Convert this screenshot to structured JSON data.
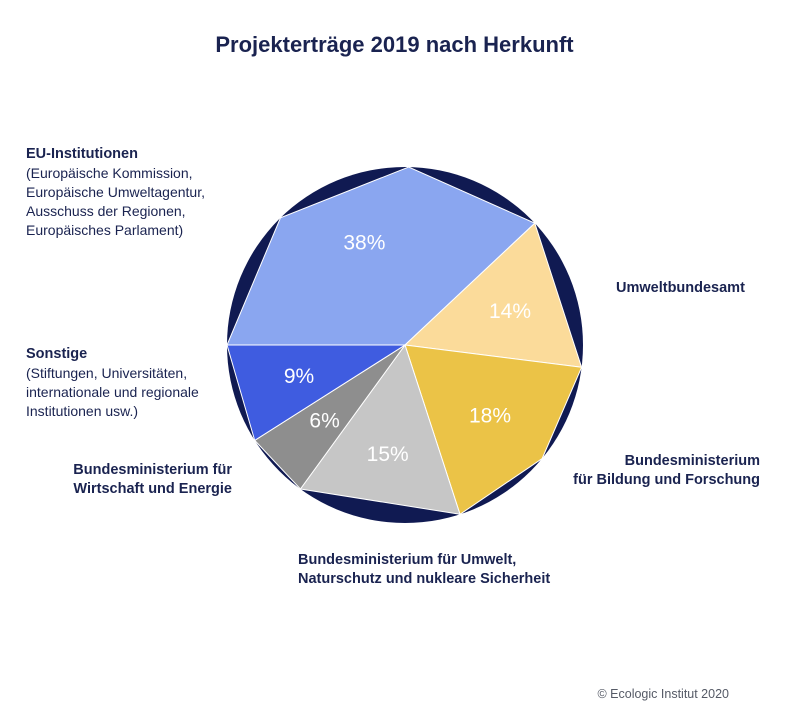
{
  "chart_data": {
    "type": "pie",
    "title": "Projekterträge 2019 nach Herkunft",
    "slices": [
      {
        "label": "EU-Institutionen",
        "detail": [
          "(Europäische Kommission,",
          "Europäische Umweltagentur,",
          "Ausschuss der Regionen,",
          "Europäisches Parlament)"
        ],
        "value": 38,
        "value_label": "38%",
        "color": "#8aa6f0"
      },
      {
        "label": "Umweltbundesamt",
        "detail": [],
        "value": 14,
        "value_label": "14%",
        "color": "#fbdb9a"
      },
      {
        "label": "Bundesministerium für Bildung und Forschung",
        "detail": [],
        "value": 18,
        "value_label": "18%",
        "color": "#ebc347"
      },
      {
        "label": "Bundesministerium für Umwelt, Naturschutz und nukleare Sicherheit",
        "detail": [],
        "value": 15,
        "value_label": "15%",
        "color": "#c6c6c6"
      },
      {
        "label": "Bundesministerium für Wirtschaft und Energie",
        "detail": [],
        "value": 6,
        "value_label": "6%",
        "color": "#8e8e8e"
      },
      {
        "label": "Sonstige",
        "detail": [
          "(Stiftungen, Universitäten,",
          "internationale und regionale",
          "Institutionen usw.)"
        ],
        "value": 9,
        "value_label": "9%",
        "color": "#3f5ce0"
      }
    ],
    "background_color": "#101a52"
  },
  "labels": {
    "eu_head": "EU-Institutionen",
    "eu_lines": [
      "(Europäische Kommission,",
      "Europäische Umweltagentur,",
      "Ausschuss der Regionen,",
      "Europäisches Parlament)"
    ],
    "uba": "Umweltbundesamt",
    "sonstige_head": "Sonstige",
    "sonstige_lines": [
      "(Stiftungen, Universitäten,",
      "internationale und regionale",
      "Institutionen usw.)"
    ],
    "bmwi_1": "Bundesministerium für",
    "bmwi_2": "Wirtschaft und Energie",
    "bmbf_1": "Bundesministerium",
    "bmbf_2": "für Bildung und Forschung",
    "bmu_1": "Bundesministerium für Umwelt,",
    "bmu_2": "Naturschutz und nukleare Sicherheit"
  },
  "copyright": "© Ecologic Institut 2020"
}
